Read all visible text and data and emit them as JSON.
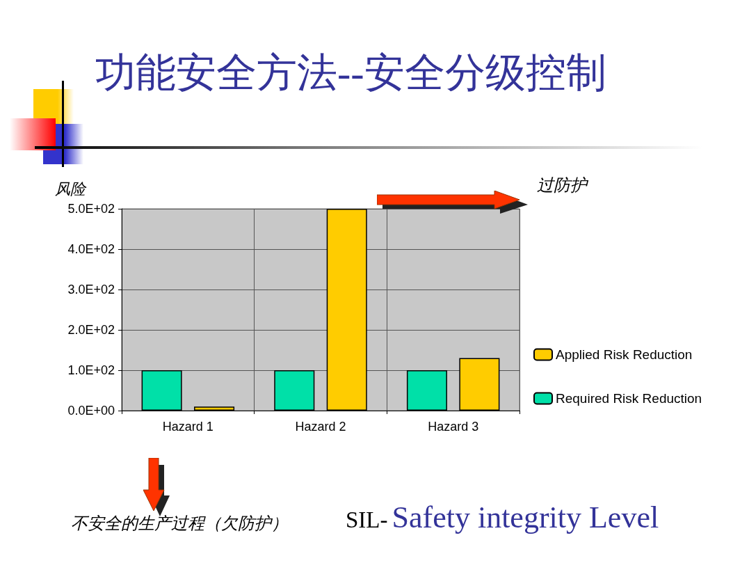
{
  "chart_data": {
    "type": "bar",
    "title": "功能安全方法--安全分级控制",
    "ylabel": "风险",
    "categories": [
      "Hazard 1",
      "Hazard 2",
      "Hazard 3"
    ],
    "series": [
      {
        "name": "Required Risk Reduction",
        "color": "#00e0a8",
        "values": [
          100,
          100,
          100
        ]
      },
      {
        "name": "Applied Risk Reduction",
        "color": "#ffcc00",
        "values": [
          10,
          500,
          130
        ]
      }
    ],
    "ylim": [
      0,
      500
    ],
    "yticks": [
      {
        "value": 0,
        "label": "0.0E+00"
      },
      {
        "value": 100,
        "label": "1.0E+02"
      },
      {
        "value": 200,
        "label": "2.0E+02"
      },
      {
        "value": 300,
        "label": "3.0E+02"
      },
      {
        "value": 400,
        "label": "4.0E+02"
      },
      {
        "value": 500,
        "label": "5.0E+02"
      }
    ],
    "grid": true,
    "legend": "right",
    "annotations": [
      "过防护",
      "不安全的生产过程（欠防护）",
      "SIL-",
      "Safety integrity Level"
    ]
  }
}
